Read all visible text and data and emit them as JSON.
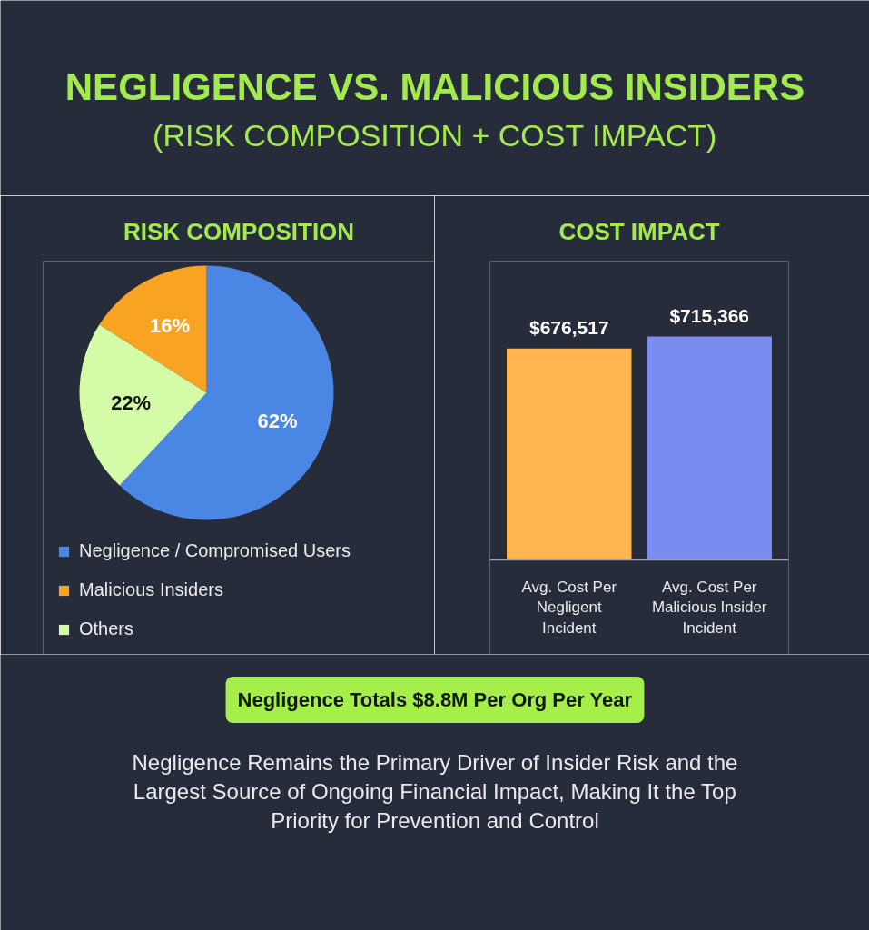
{
  "chart_data": [
    {
      "type": "other",
      "title": "NEGLIGENCE VS. MALICIOUS INSIDERS",
      "subtitle": "(RISK COMPOSITION + COST IMPACT)"
    },
    {
      "type": "pie",
      "title": "RISK COMPOSITION",
      "categories": [
        "Negligence / Compromised Users",
        "Malicious Insiders",
        "Others"
      ],
      "values": [
        62,
        16,
        22
      ],
      "colors": [
        "#4a86e4",
        "#f9a322",
        "#d4fca8"
      ],
      "value_labels": [
        "62%",
        "16%",
        "22%"
      ],
      "legend": "bottom left"
    },
    {
      "type": "bar",
      "title": "COST IMPACT",
      "categories": [
        "Avg. Cost Per Negligent Incident",
        "Avg. Cost Per Malicious Insider Incident"
      ],
      "values": [
        676517,
        715366
      ],
      "colors": [
        "#ffb44f",
        "#7a8cf0"
      ],
      "value_labels": [
        "$676,517",
        "$715,366"
      ],
      "tick_labels": "x"
    },
    {
      "type": "other",
      "annotations": [
        "Negligence Totals $8.8M Per Org Per Year",
        "Negligence Remains the Primary Driver of Insider Risk and the Largest Source of Ongoing Financial Impact, Making It the Top Priority for Prevention and Control"
      ]
    }
  ]
}
